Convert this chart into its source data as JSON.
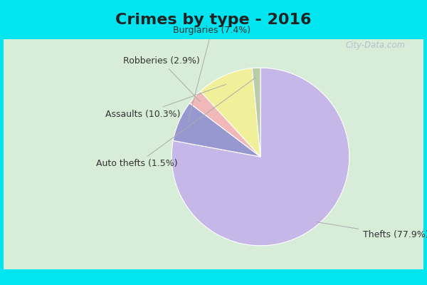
{
  "title": "Crimes by type - 2016",
  "labels": [
    "Thefts",
    "Burglaries",
    "Robberies",
    "Assaults",
    "Auto thefts"
  ],
  "values": [
    77.9,
    7.4,
    2.9,
    10.3,
    1.5
  ],
  "colors": [
    "#c5b8e8",
    "#9898d0",
    "#f0b8b8",
    "#f0f09a",
    "#b8cca8"
  ],
  "bg_cyan": "#00e5f0",
  "bg_main": "#d8edd8",
  "title_fontsize": 16,
  "label_fontsize": 9,
  "startangle": 90,
  "title_color": "#222222",
  "label_color": "#333333",
  "watermark": "City-Data.com",
  "wedge_labels": [
    "Thefts (77.9%)",
    "Burglaries (7.4%)",
    "Robberies (2.9%)",
    "Assaults (10.3%)",
    "Auto thefts (1.5%)"
  ],
  "arrow_color": "#aaaaaa"
}
